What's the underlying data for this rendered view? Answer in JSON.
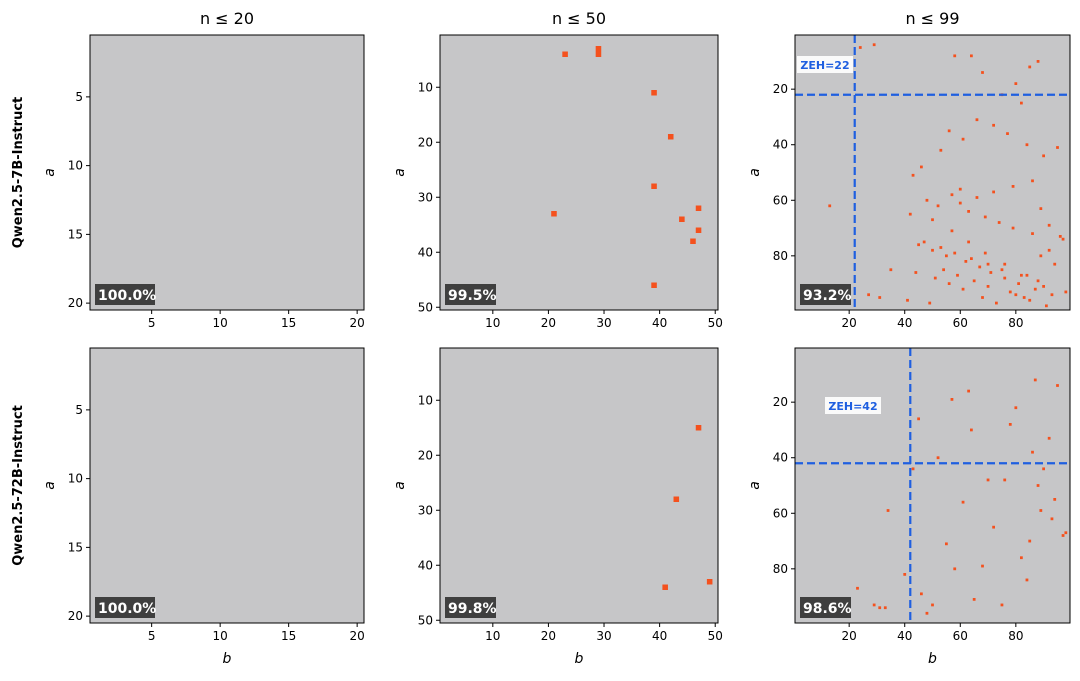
{
  "chart_data": [
    {
      "type": "heatmap",
      "title": "n ≤ 20",
      "row_label": "Qwen2.5-7B-Instruct",
      "ylabel": "a",
      "xlim": [
        0.5,
        20.5
      ],
      "ylim": [
        20.5,
        0.5
      ],
      "xticks": [
        5,
        10,
        15,
        20
      ],
      "yticks": [
        5,
        10,
        15,
        20
      ],
      "x": [],
      "y": [],
      "accuracy": "100.0%",
      "background": "#c6c6c8",
      "color": "#f4511e"
    },
    {
      "type": "heatmap",
      "title": "n ≤ 50",
      "ylabel": "a",
      "xlim": [
        0.5,
        50.5
      ],
      "ylim": [
        50.5,
        0.5
      ],
      "xticks": [
        10,
        20,
        30,
        40,
        50
      ],
      "yticks": [
        10,
        20,
        30,
        40,
        50
      ],
      "x": [
        23,
        29,
        29,
        39,
        42,
        39,
        21,
        47,
        44,
        47,
        46,
        39
      ],
      "y": [
        4,
        3,
        4,
        11,
        19,
        28,
        33,
        32,
        34,
        36,
        38,
        46
      ],
      "accuracy": "99.5%",
      "background": "#c6c6c8",
      "color": "#f4511e"
    },
    {
      "type": "heatmap",
      "title": "n ≤ 99",
      "ylabel": "a",
      "xlim": [
        0.5,
        99.5
      ],
      "ylim": [
        99.5,
        0.5
      ],
      "xticks": [
        20,
        40,
        60,
        80
      ],
      "yticks": [
        20,
        40,
        60,
        80
      ],
      "x": [
        29,
        24,
        58,
        64,
        88,
        85,
        68,
        75,
        80,
        82,
        56,
        61,
        53,
        46,
        43,
        60,
        66,
        72,
        77,
        84,
        90,
        95,
        48,
        52,
        57,
        63,
        69,
        74,
        79,
        86,
        92,
        97,
        45,
        50,
        55,
        62,
        67,
        71,
        76,
        81,
        87,
        93,
        41,
        49,
        54,
        59,
        65,
        70,
        78,
        83,
        89,
        94,
        44,
        51,
        56,
        61,
        68,
        73,
        80,
        85,
        91,
        96,
        47,
        53,
        58,
        64,
        70,
        75,
        82,
        88,
        90,
        98,
        42,
        50,
        57,
        63,
        69,
        76,
        84,
        89,
        60,
        66,
        72,
        79,
        86,
        92,
        35,
        31,
        27,
        13
      ],
      "y": [
        4,
        5,
        8,
        8,
        10,
        12,
        14,
        22,
        18,
        25,
        35,
        38,
        42,
        48,
        51,
        56,
        31,
        33,
        36,
        40,
        44,
        41,
        60,
        62,
        58,
        64,
        66,
        68,
        70,
        72,
        69,
        74,
        76,
        78,
        80,
        82,
        84,
        86,
        88,
        90,
        92,
        94,
        96,
        97,
        85,
        87,
        89,
        91,
        93,
        95,
        80,
        83,
        86,
        88,
        90,
        92,
        95,
        97,
        94,
        96,
        98,
        73,
        75,
        77,
        79,
        81,
        83,
        85,
        87,
        89,
        91,
        93,
        65,
        67,
        71,
        75,
        79,
        83,
        87,
        63,
        61,
        59,
        57,
        55,
        53,
        78,
        85,
        95,
        94,
        62
      ],
      "accuracy": "93.2%",
      "zeh": {
        "value": 22,
        "label": "ZEH=22"
      },
      "zeh_color": "#1f5fe0",
      "background": "#c6c6c8",
      "color": "#f4511e"
    },
    {
      "type": "heatmap",
      "row_label": "Qwen2.5-72B-Instruct",
      "xlabel": "b",
      "ylabel": "a",
      "xlim": [
        0.5,
        20.5
      ],
      "ylim": [
        20.5,
        0.5
      ],
      "xticks": [
        5,
        10,
        15,
        20
      ],
      "yticks": [
        5,
        10,
        15,
        20
      ],
      "x": [],
      "y": [],
      "accuracy": "100.0%",
      "background": "#c6c6c8",
      "color": "#f4511e"
    },
    {
      "type": "heatmap",
      "xlabel": "b",
      "ylabel": "a",
      "xlim": [
        0.5,
        50.5
      ],
      "ylim": [
        50.5,
        0.5
      ],
      "xticks": [
        10,
        20,
        30,
        40,
        50
      ],
      "yticks": [
        10,
        20,
        30,
        40,
        50
      ],
      "x": [
        47,
        43,
        41,
        49
      ],
      "y": [
        15,
        28,
        44,
        43
      ],
      "accuracy": "99.8%",
      "background": "#c6c6c8",
      "color": "#f4511e"
    },
    {
      "type": "heatmap",
      "xlabel": "b",
      "ylabel": "a",
      "xlim": [
        0.5,
        99.5
      ],
      "ylim": [
        99.5,
        0.5
      ],
      "xticks": [
        20,
        40,
        60,
        80
      ],
      "yticks": [
        20,
        40,
        60,
        80
      ],
      "x": [
        23,
        29,
        31,
        33,
        34,
        40,
        43,
        46,
        48,
        50,
        52,
        55,
        58,
        61,
        63,
        65,
        68,
        70,
        72,
        75,
        78,
        80,
        82,
        85,
        87,
        88,
        90,
        92,
        93,
        95,
        97,
        98,
        86,
        84,
        76,
        64,
        57,
        45,
        94,
        89
      ],
      "y": [
        87,
        93,
        94,
        94,
        59,
        82,
        44,
        89,
        96,
        93,
        40,
        71,
        80,
        56,
        16,
        91,
        79,
        48,
        65,
        93,
        28,
        22,
        76,
        70,
        12,
        50,
        44,
        33,
        62,
        14,
        68,
        67,
        38,
        84,
        48,
        30,
        19,
        26,
        55,
        59
      ],
      "accuracy": "98.6%",
      "zeh": {
        "value": 42,
        "label": "ZEH=42"
      },
      "zeh_color": "#1f5fe0",
      "background": "#c6c6c8",
      "color": "#f4511e"
    }
  ]
}
